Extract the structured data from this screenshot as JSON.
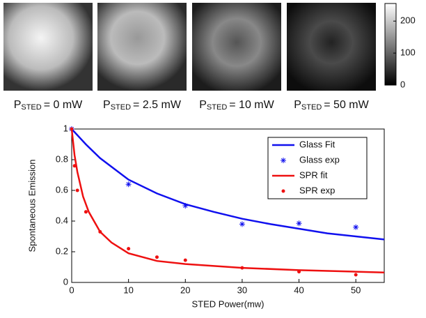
{
  "images": {
    "panels": [
      {
        "label_main": "P",
        "label_sub": "STED",
        "label_rest": "= 0 mW"
      },
      {
        "label_main": "P",
        "label_sub": "STED",
        "label_rest": "= 2.5 mW"
      },
      {
        "label_main": "P",
        "label_sub": "STED",
        "label_rest": "= 10 mW"
      },
      {
        "label_main": "P",
        "label_sub": "STED",
        "label_rest": "= 50 mW"
      }
    ],
    "colorbar": {
      "lim": [
        0,
        255
      ],
      "ticks": [
        0,
        100,
        200
      ]
    }
  },
  "chart_data": {
    "type": "line",
    "xlabel": "STED Power(mw)",
    "ylabel": "Spontaneous Emission",
    "xlim": [
      0,
      55
    ],
    "ylim": [
      0,
      1
    ],
    "xticks": [
      0,
      10,
      20,
      30,
      40,
      50
    ],
    "yticks": [
      0,
      0.2,
      0.4,
      0.6,
      0.8,
      1
    ],
    "legend": "upper right",
    "series": [
      {
        "name": "Glass Fit",
        "color": "#1010ee",
        "mode": "line",
        "x": [
          0,
          2.5,
          5,
          10,
          15,
          20,
          25,
          30,
          35,
          40,
          45,
          50,
          55
        ],
        "values": [
          1,
          0.9,
          0.81,
          0.67,
          0.58,
          0.51,
          0.46,
          0.415,
          0.38,
          0.35,
          0.32,
          0.3,
          0.28
        ]
      },
      {
        "name": "Glass exp",
        "color": "#1010ee",
        "mode": "asterisk",
        "x": [
          0,
          10,
          20,
          30,
          40,
          50
        ],
        "values": [
          1,
          0.64,
          0.5,
          0.38,
          0.385,
          0.36
        ]
      },
      {
        "name": "SPR fit",
        "color": "#ee1010",
        "mode": "line",
        "x": [
          0,
          0.5,
          1,
          2,
          3,
          5,
          7,
          10,
          15,
          20,
          30,
          40,
          50,
          55
        ],
        "values": [
          1,
          0.83,
          0.72,
          0.56,
          0.46,
          0.33,
          0.26,
          0.19,
          0.14,
          0.12,
          0.095,
          0.08,
          0.07,
          0.065
        ]
      },
      {
        "name": "SPR exp",
        "color": "#ee1010",
        "mode": "dot",
        "x": [
          0,
          0.5,
          1,
          2.5,
          5,
          10,
          15,
          20,
          30,
          40,
          50
        ],
        "values": [
          1,
          0.76,
          0.6,
          0.46,
          0.33,
          0.22,
          0.165,
          0.145,
          0.095,
          0.07,
          0.05
        ]
      }
    ]
  }
}
